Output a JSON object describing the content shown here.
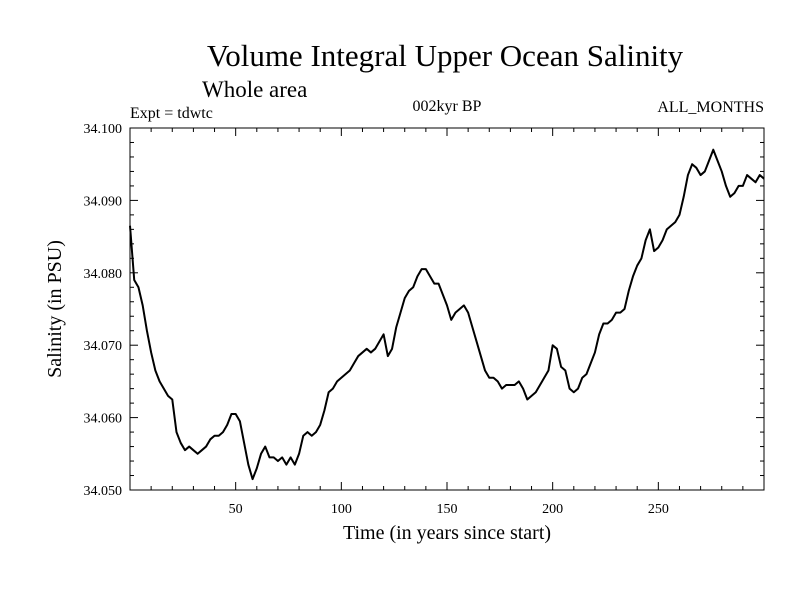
{
  "chart_data": {
    "type": "line",
    "title": "Volume Integral Upper Ocean Salinity",
    "subtitle": "Whole area",
    "header_left": "Expt = tdwtc",
    "header_center": "002kyr BP",
    "header_right": "ALL_MONTHS",
    "xlabel": "Time (in years since start)",
    "ylabel": "Salinity (in PSU)",
    "xlim": [
      0,
      300
    ],
    "ylim": [
      34.05,
      34.1
    ],
    "xticks": [
      50,
      100,
      150,
      200,
      250
    ],
    "xtick_labels": [
      "50",
      "100",
      "150",
      "200",
      "250"
    ],
    "yticks": [
      34.05,
      34.06,
      34.07,
      34.08,
      34.09,
      34.1
    ],
    "ytick_labels": [
      "34.050",
      "34.060",
      "34.070",
      "34.080",
      "34.090",
      "34.100"
    ],
    "series": [
      {
        "name": "Salinity",
        "color": "#000000",
        "x": [
          0,
          2,
          4,
          6,
          8,
          10,
          12,
          14,
          16,
          18,
          20,
          22,
          24,
          26,
          28,
          30,
          32,
          34,
          36,
          38,
          40,
          42,
          44,
          46,
          48,
          50,
          52,
          54,
          56,
          58,
          60,
          62,
          64,
          66,
          68,
          70,
          72,
          74,
          76,
          78,
          80,
          82,
          84,
          86,
          88,
          90,
          92,
          94,
          96,
          98,
          100,
          102,
          104,
          106,
          108,
          110,
          112,
          114,
          116,
          118,
          120,
          122,
          124,
          126,
          128,
          130,
          132,
          134,
          136,
          138,
          140,
          142,
          144,
          146,
          148,
          150,
          152,
          154,
          156,
          158,
          160,
          162,
          164,
          166,
          168,
          170,
          172,
          174,
          176,
          178,
          180,
          182,
          184,
          186,
          188,
          190,
          192,
          194,
          196,
          198,
          200,
          202,
          204,
          206,
          208,
          210,
          212,
          214,
          216,
          218,
          220,
          222,
          224,
          226,
          228,
          230,
          232,
          234,
          236,
          238,
          240,
          242,
          244,
          246,
          248,
          250,
          252,
          254,
          256,
          258,
          260,
          262,
          264,
          266,
          268,
          270,
          272,
          274,
          276,
          278,
          280,
          282,
          284,
          286,
          288,
          290,
          292,
          294,
          296,
          298,
          300
        ],
        "values": [
          34.0865,
          34.079,
          34.078,
          34.0755,
          34.072,
          34.069,
          34.0665,
          34.065,
          34.064,
          34.063,
          34.0625,
          34.058,
          34.0565,
          34.0555,
          34.056,
          34.0555,
          34.055,
          34.0555,
          34.056,
          34.057,
          34.0575,
          34.0575,
          34.058,
          34.059,
          34.0605,
          34.0605,
          34.0595,
          34.0565,
          34.0535,
          34.0515,
          34.053,
          34.055,
          34.056,
          34.0545,
          34.0545,
          34.054,
          34.0545,
          34.0535,
          34.0545,
          34.0535,
          34.055,
          34.0575,
          34.058,
          34.0575,
          34.058,
          34.059,
          34.061,
          34.0635,
          34.064,
          34.065,
          34.0655,
          34.066,
          34.0665,
          34.0675,
          34.0685,
          34.069,
          34.0695,
          34.069,
          34.0695,
          34.0705,
          34.0715,
          34.0685,
          34.0695,
          34.0725,
          34.0745,
          34.0765,
          34.0775,
          34.078,
          34.0795,
          34.0805,
          34.0805,
          34.0795,
          34.0785,
          34.0785,
          34.077,
          34.0755,
          34.0735,
          34.0745,
          34.075,
          34.0755,
          34.0745,
          34.0725,
          34.0705,
          34.0685,
          34.0665,
          34.0655,
          34.0655,
          34.065,
          34.064,
          34.0645,
          34.0645,
          34.0645,
          34.065,
          34.064,
          34.0625,
          34.063,
          34.0635,
          34.0645,
          34.0655,
          34.0665,
          34.07,
          34.0695,
          34.067,
          34.0665,
          34.064,
          34.0635,
          34.064,
          34.0655,
          34.066,
          34.0675,
          34.069,
          34.0715,
          34.073,
          34.073,
          34.0735,
          34.0745,
          34.0745,
          34.075,
          34.0775,
          34.0795,
          34.081,
          34.082,
          34.0845,
          34.086,
          34.083,
          34.0835,
          34.0845,
          34.086,
          34.0865,
          34.087,
          34.088,
          34.0905,
          34.0935,
          34.095,
          34.0945,
          34.0935,
          34.094,
          34.0955,
          34.097,
          34.0955,
          34.094,
          34.092,
          34.0905,
          34.091,
          34.092,
          34.092,
          34.0935,
          34.093,
          34.0925,
          34.0935,
          34.093
        ]
      }
    ]
  }
}
